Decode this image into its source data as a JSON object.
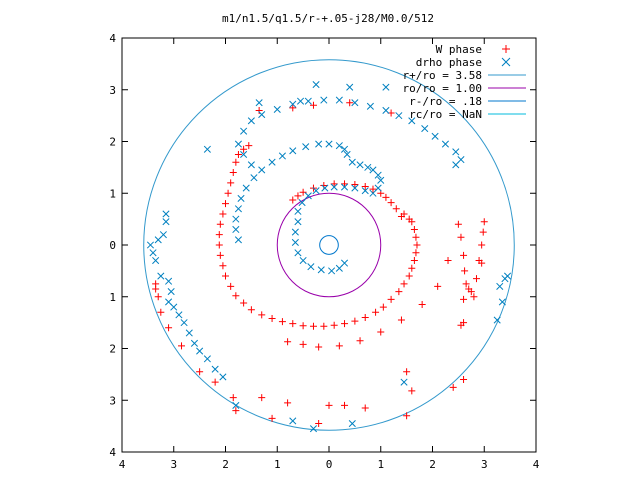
{
  "chart_data": {
    "type": "scatter",
    "title": "m1/n1.5/q1.5/r-+.05-j28/M0.0/512",
    "xlabel": "",
    "ylabel": "",
    "xlim": [
      -4,
      4
    ],
    "ylim": [
      -4,
      4
    ],
    "x_tick_values": [
      -4,
      -3,
      -2,
      -1,
      0,
      1,
      2,
      3,
      4
    ],
    "x_tick_labels": [
      "4",
      "3",
      "2",
      "1",
      "0",
      "1",
      "2",
      "3",
      "4"
    ],
    "y_tick_values": [
      4,
      3,
      2,
      1,
      0,
      -1,
      -2,
      -3,
      -4
    ],
    "y_tick_labels": [
      "4",
      "3",
      "2",
      "1",
      "0",
      "1",
      "2",
      "3",
      "4"
    ],
    "grid": false,
    "legend_position": "top-right",
    "series": [
      {
        "name": "W phase",
        "marker": "plus",
        "color": "#ff0000",
        "description": "spiral arm of + markers",
        "points": [
          [
            1.4,
            0.55
          ],
          [
            1.3,
            0.7
          ],
          [
            1.2,
            0.82
          ],
          [
            1.1,
            0.92
          ],
          [
            1.0,
            1.0
          ],
          [
            0.85,
            1.08
          ],
          [
            0.7,
            1.13
          ],
          [
            0.5,
            1.17
          ],
          [
            0.3,
            1.18
          ],
          [
            0.1,
            1.18
          ],
          [
            -0.1,
            1.15
          ],
          [
            -0.3,
            1.1
          ],
          [
            -0.5,
            1.02
          ],
          [
            -0.6,
            0.95
          ],
          [
            -0.7,
            0.87
          ],
          [
            1.45,
            0.6
          ],
          [
            1.55,
            0.5
          ],
          [
            1.6,
            0.45
          ],
          [
            1.65,
            0.3
          ],
          [
            1.68,
            0.15
          ],
          [
            1.7,
            0.0
          ],
          [
            1.68,
            -0.15
          ],
          [
            1.65,
            -0.3
          ],
          [
            1.6,
            -0.45
          ],
          [
            1.55,
            -0.6
          ],
          [
            1.45,
            -0.75
          ],
          [
            1.35,
            -0.9
          ],
          [
            1.2,
            -1.05
          ],
          [
            1.05,
            -1.2
          ],
          [
            0.9,
            -1.3
          ],
          [
            0.7,
            -1.4
          ],
          [
            0.5,
            -1.47
          ],
          [
            0.3,
            -1.52
          ],
          [
            0.1,
            -1.55
          ],
          [
            -0.1,
            -1.57
          ],
          [
            -0.3,
            -1.57
          ],
          [
            -0.5,
            -1.56
          ],
          [
            -0.7,
            -1.52
          ],
          [
            -0.9,
            -1.48
          ],
          [
            -1.1,
            -1.42
          ],
          [
            -1.3,
            -1.35
          ],
          [
            -1.5,
            -1.25
          ],
          [
            -1.65,
            -1.12
          ],
          [
            -1.8,
            -0.98
          ],
          [
            -1.9,
            -0.8
          ],
          [
            -2.0,
            -0.6
          ],
          [
            -2.05,
            -0.4
          ],
          [
            -2.1,
            -0.2
          ],
          [
            -2.12,
            0.0
          ],
          [
            -2.12,
            0.2
          ],
          [
            -2.1,
            0.4
          ],
          [
            -2.05,
            0.6
          ],
          [
            -2.0,
            0.8
          ],
          [
            -1.95,
            1.0
          ],
          [
            -1.9,
            1.2
          ],
          [
            -1.85,
            1.4
          ],
          [
            -1.8,
            1.6
          ],
          [
            -1.75,
            1.75
          ],
          [
            -1.65,
            1.85
          ],
          [
            -1.55,
            1.92
          ],
          [
            -0.8,
            -1.87
          ],
          [
            -0.5,
            -1.92
          ],
          [
            -0.2,
            -1.97
          ],
          [
            0.2,
            -1.95
          ],
          [
            0.6,
            -1.85
          ],
          [
            1.0,
            -1.68
          ],
          [
            1.4,
            -1.45
          ],
          [
            1.8,
            -1.15
          ],
          [
            2.1,
            -0.8
          ],
          [
            2.3,
            -0.3
          ],
          [
            2.5,
            0.4
          ],
          [
            2.55,
            0.15
          ],
          [
            2.6,
            -0.2
          ],
          [
            2.62,
            -0.5
          ],
          [
            2.65,
            -0.75
          ],
          [
            2.75,
            -0.9
          ],
          [
            2.8,
            -1.0
          ],
          [
            2.85,
            -0.65
          ],
          [
            2.9,
            -0.3
          ],
          [
            2.95,
            0.0
          ],
          [
            2.98,
            0.25
          ],
          [
            3.0,
            0.45
          ],
          [
            2.95,
            -0.35
          ],
          [
            2.7,
            -0.85
          ],
          [
            2.6,
            -1.05
          ],
          [
            2.6,
            -1.5
          ],
          [
            2.55,
            -1.55
          ],
          [
            2.4,
            -2.75
          ],
          [
            1.5,
            -2.45
          ],
          [
            0.7,
            -3.15
          ],
          [
            0.3,
            -3.1
          ],
          [
            0.0,
            -3.1
          ],
          [
            -0.8,
            -3.05
          ],
          [
            -1.3,
            -2.95
          ],
          [
            -1.85,
            -2.95
          ],
          [
            -1.8,
            -3.2
          ],
          [
            -2.2,
            -2.65
          ],
          [
            -2.5,
            -2.45
          ],
          [
            -2.85,
            -1.95
          ],
          [
            -3.1,
            -1.6
          ],
          [
            -3.25,
            -1.3
          ],
          [
            -3.3,
            -1.0
          ],
          [
            -3.35,
            -0.85
          ],
          [
            -3.35,
            -0.75
          ],
          [
            -0.7,
            2.65
          ],
          [
            -1.35,
            2.6
          ],
          [
            -0.3,
            2.7
          ],
          [
            0.4,
            2.75
          ],
          [
            1.2,
            2.55
          ],
          [
            -1.1,
            -3.35
          ],
          [
            -0.2,
            -3.45
          ],
          [
            1.5,
            -3.3
          ],
          [
            1.6,
            -2.82
          ],
          [
            2.6,
            -2.6
          ]
        ]
      },
      {
        "name": "drho phase",
        "marker": "cross",
        "color": "#0080c0",
        "description": "spiral arms of x markers",
        "points": [
          [
            -0.6,
            0.45
          ],
          [
            -0.65,
            0.25
          ],
          [
            -0.65,
            0.05
          ],
          [
            -0.6,
            -0.15
          ],
          [
            -0.5,
            -0.3
          ],
          [
            -0.35,
            -0.42
          ],
          [
            -0.15,
            -0.48
          ],
          [
            0.05,
            -0.5
          ],
          [
            0.2,
            -0.45
          ],
          [
            0.3,
            -0.35
          ],
          [
            -0.6,
            0.65
          ],
          [
            -0.52,
            0.82
          ],
          [
            -0.4,
            0.95
          ],
          [
            -0.25,
            1.05
          ],
          [
            -0.08,
            1.1
          ],
          [
            0.1,
            1.12
          ],
          [
            0.3,
            1.12
          ],
          [
            0.5,
            1.1
          ],
          [
            0.7,
            1.05
          ],
          [
            0.85,
            1.0
          ],
          [
            0.95,
            1.1
          ],
          [
            1.0,
            1.25
          ],
          [
            0.95,
            1.35
          ],
          [
            0.85,
            1.45
          ],
          [
            0.75,
            1.5
          ],
          [
            0.6,
            1.55
          ],
          [
            0.45,
            1.6
          ],
          [
            0.35,
            1.75
          ],
          [
            0.3,
            1.85
          ],
          [
            0.2,
            1.92
          ],
          [
            0.0,
            1.95
          ],
          [
            -0.2,
            1.95
          ],
          [
            -0.45,
            1.9
          ],
          [
            -0.7,
            1.82
          ],
          [
            -0.9,
            1.72
          ],
          [
            -1.1,
            1.6
          ],
          [
            -1.3,
            1.45
          ],
          [
            -1.45,
            1.3
          ],
          [
            -1.6,
            1.1
          ],
          [
            -1.7,
            0.9
          ],
          [
            -1.75,
            0.7
          ],
          [
            -1.8,
            0.5
          ],
          [
            -1.8,
            0.3
          ],
          [
            -1.75,
            0.1
          ],
          [
            -1.5,
            1.55
          ],
          [
            -1.65,
            1.75
          ],
          [
            -1.75,
            1.95
          ],
          [
            -1.65,
            2.2
          ],
          [
            -1.5,
            2.4
          ],
          [
            -1.3,
            2.52
          ],
          [
            -1.0,
            2.62
          ],
          [
            -0.7,
            2.72
          ],
          [
            -0.4,
            2.78
          ],
          [
            -0.1,
            2.8
          ],
          [
            0.2,
            2.8
          ],
          [
            0.5,
            2.75
          ],
          [
            0.8,
            2.68
          ],
          [
            1.1,
            2.6
          ],
          [
            1.35,
            2.5
          ],
          [
            1.6,
            2.4
          ],
          [
            1.85,
            2.25
          ],
          [
            2.05,
            2.1
          ],
          [
            2.25,
            1.95
          ],
          [
            2.45,
            1.8
          ],
          [
            2.55,
            1.65
          ],
          [
            -3.45,
            0.0
          ],
          [
            -3.4,
            -0.15
          ],
          [
            -3.35,
            -0.3
          ],
          [
            -3.3,
            0.1
          ],
          [
            -3.2,
            0.2
          ],
          [
            -3.15,
            0.45
          ],
          [
            -3.15,
            0.6
          ],
          [
            -3.25,
            -0.6
          ],
          [
            -3.1,
            -0.7
          ],
          [
            -3.05,
            -0.9
          ],
          [
            -3.1,
            -1.1
          ],
          [
            -3.0,
            -1.2
          ],
          [
            -2.9,
            -1.35
          ],
          [
            -2.8,
            -1.5
          ],
          [
            -2.7,
            -1.7
          ],
          [
            -2.6,
            -1.9
          ],
          [
            -2.5,
            -2.05
          ],
          [
            -2.35,
            -2.2
          ],
          [
            -2.2,
            -2.4
          ],
          [
            -2.05,
            -2.55
          ],
          [
            -1.8,
            -3.1
          ],
          [
            -0.7,
            -3.4
          ],
          [
            -0.3,
            -3.55
          ],
          [
            0.45,
            -3.45
          ],
          [
            1.45,
            -2.65
          ],
          [
            3.3,
            -0.8
          ],
          [
            3.4,
            -0.65
          ],
          [
            3.45,
            -0.6
          ],
          [
            3.35,
            -1.1
          ],
          [
            3.25,
            -1.45
          ],
          [
            -1.35,
            2.75
          ],
          [
            -0.25,
            3.1
          ],
          [
            0.4,
            3.05
          ],
          [
            1.1,
            3.05
          ],
          [
            2.45,
            1.55
          ],
          [
            -2.35,
            1.85
          ],
          [
            -0.55,
            2.78
          ]
        ]
      }
    ],
    "circles": [
      {
        "name": "r+/ro = 3.58",
        "radius": 3.58,
        "color": "#3399cc"
      },
      {
        "name": "ro/ro = 1.00",
        "radius": 1.0,
        "color": "#9900aa"
      },
      {
        "name": "r-/ro = .18",
        "radius": 0.18,
        "color": "#0077cc"
      },
      {
        "name": "rc/ro = NaN",
        "radius": null,
        "color": "#00bbdd"
      }
    ]
  }
}
